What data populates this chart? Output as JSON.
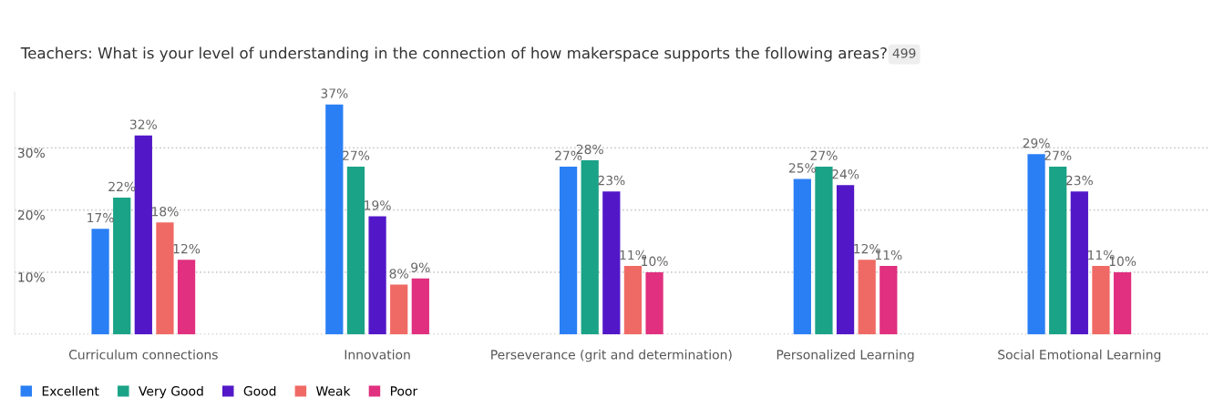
{
  "chart_data": {
    "type": "bar",
    "title": "Teachers: What is your level of understanding in the connection of how makerspace supports the following areas?",
    "annotations": [
      "499"
    ],
    "categories": [
      "Curriculum connections",
      "Innovation",
      "Perseverance (grit and determination)",
      "Personalized Learning",
      "Social Emotional Learning"
    ],
    "series": [
      {
        "name": "Excellent",
        "color": "#2b7ff5",
        "values": [
          17,
          37,
          27,
          25,
          29
        ],
        "value_labels": [
          "17%",
          "37%",
          "27%",
          "25%",
          "29%"
        ]
      },
      {
        "name": "Very Good",
        "color": "#1aa386",
        "values": [
          22,
          27,
          28,
          27,
          27
        ],
        "value_labels": [
          "22%",
          "27%",
          "28%",
          "27%",
          "27%"
        ]
      },
      {
        "name": "Good",
        "color": "#5218c8",
        "values": [
          32,
          19,
          23,
          24,
          23
        ],
        "value_labels": [
          "32%",
          "19%",
          "23%",
          "24%",
          "23%"
        ]
      },
      {
        "name": "Weak",
        "color": "#f06a65",
        "values": [
          18,
          8,
          11,
          12,
          11
        ],
        "value_labels": [
          "18%",
          "8%",
          "11%",
          "12%",
          "11%"
        ]
      },
      {
        "name": "Poor",
        "color": "#e0307f",
        "values": [
          12,
          9,
          10,
          11,
          10
        ],
        "value_labels": [
          "12%",
          "9%",
          "10%",
          "11%",
          "10%"
        ]
      }
    ],
    "ylim": [
      0,
      39
    ],
    "yticks": [
      {
        "value": 0,
        "label": null
      },
      {
        "value": 10,
        "label": "10%"
      },
      {
        "value": 20,
        "label": "20%"
      },
      {
        "value": 30,
        "label": "30%"
      }
    ],
    "grid": "y",
    "legend": "bottom left"
  }
}
